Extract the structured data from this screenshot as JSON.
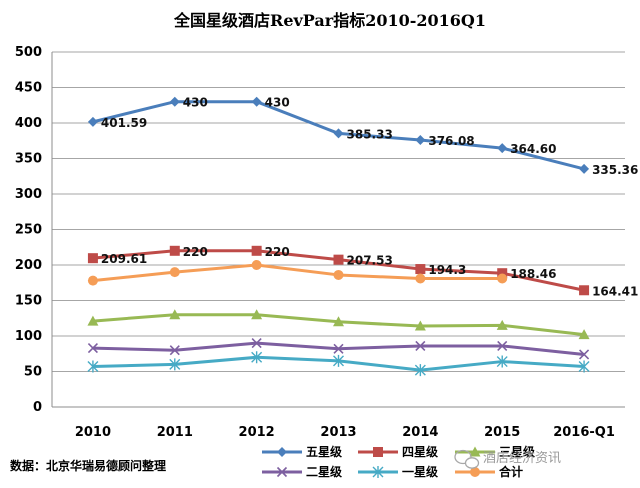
{
  "chart_data": {
    "type": "line",
    "title": "全国星级酒店RevPar指标2010-2016Q1",
    "categories": [
      "2010",
      "2011",
      "2012",
      "2013",
      "2014",
      "2015",
      "2016-Q1"
    ],
    "ylim": [
      0,
      500
    ],
    "yticks": [
      0,
      50,
      100,
      150,
      200,
      250,
      300,
      350,
      400,
      450,
      500
    ],
    "grid": true,
    "legend_position": "bottom",
    "series": [
      {
        "name": "五星级",
        "color": "#4A7EBB",
        "marker": "diamond",
        "values": [
          401.59,
          430,
          430,
          385.33,
          376.08,
          364.6,
          335.36
        ],
        "labels": [
          "401.59",
          "430",
          "430",
          "385.33",
          "376.08",
          "364.60",
          "335.36"
        ]
      },
      {
        "name": "四星级",
        "color": "#BE4B48",
        "marker": "square",
        "values": [
          209.61,
          220,
          220,
          207.53,
          194.3,
          188.46,
          164.41
        ],
        "labels": [
          "209.61",
          "220",
          "220",
          "207.53",
          "194.3",
          "188.46",
          "164.41"
        ]
      },
      {
        "name": "三星级",
        "color": "#98B954",
        "marker": "triangle",
        "values": [
          121,
          130,
          130,
          120,
          114,
          115,
          102
        ],
        "labels": []
      },
      {
        "name": "二星级",
        "color": "#7D5FA0",
        "marker": "x",
        "values": [
          83,
          80,
          90,
          82,
          86,
          86,
          74
        ],
        "labels": []
      },
      {
        "name": "一星级",
        "color": "#46AAC5",
        "marker": "star",
        "values": [
          57,
          60,
          70,
          65,
          52,
          64,
          57
        ],
        "labels": []
      },
      {
        "name": "合计",
        "color": "#F59D56",
        "marker": "circle",
        "values": [
          178,
          190,
          200,
          186,
          181,
          181,
          null
        ],
        "labels": []
      }
    ]
  },
  "footer": {
    "source": "数据：北京华瑞易德顾问整理",
    "watermark": "酒店经济资讯"
  }
}
